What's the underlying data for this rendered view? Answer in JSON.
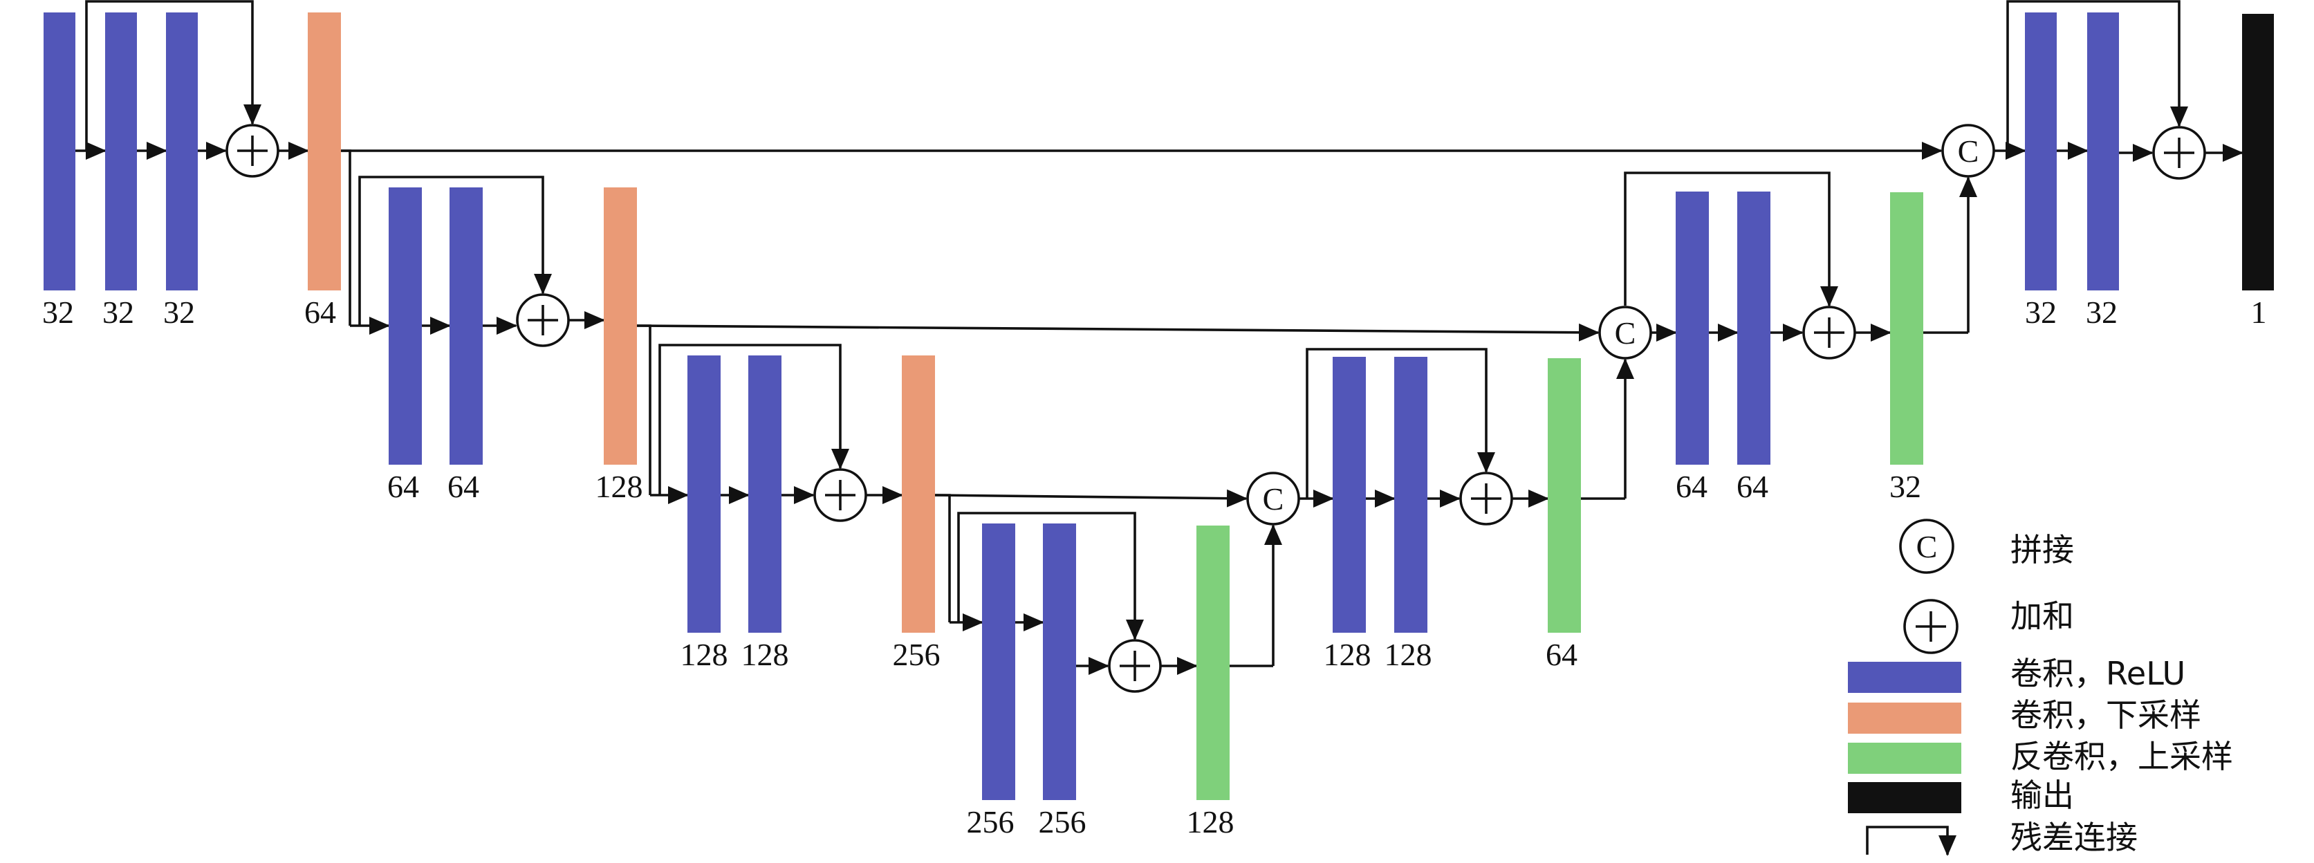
{
  "colors": {
    "conv_relu": "#5256b8",
    "conv_down": "#ea9a76",
    "deconv_up": "#7fd07b",
    "output": "#111111",
    "line": "#111111"
  },
  "blocks": [
    {
      "type": "conv_relu",
      "label": "32"
    },
    {
      "type": "conv_relu",
      "label": "32"
    },
    {
      "type": "conv_relu",
      "label": "32"
    },
    {
      "type": "conv_down",
      "label": "64"
    },
    {
      "type": "conv_relu",
      "label": "64"
    },
    {
      "type": "conv_relu",
      "label": "64"
    },
    {
      "type": "conv_down",
      "label": "128"
    },
    {
      "type": "conv_relu",
      "label": "128"
    },
    {
      "type": "conv_relu",
      "label": "128"
    },
    {
      "type": "conv_down",
      "label": "256"
    },
    {
      "type": "conv_relu",
      "label": "256"
    },
    {
      "type": "conv_relu",
      "label": "256"
    },
    {
      "type": "deconv_up",
      "label": "128"
    },
    {
      "type": "conv_relu",
      "label": "128"
    },
    {
      "type": "conv_relu",
      "label": "128"
    },
    {
      "type": "deconv_up",
      "label": "64"
    },
    {
      "type": "conv_relu",
      "label": "64"
    },
    {
      "type": "conv_relu",
      "label": "64"
    },
    {
      "type": "deconv_up",
      "label": "32"
    },
    {
      "type": "conv_relu",
      "label": "32"
    },
    {
      "type": "conv_relu",
      "label": "32"
    },
    {
      "type": "output",
      "label": "1"
    }
  ],
  "concat_symbol": "C",
  "legend": {
    "concat": "拼接",
    "add": "加和",
    "conv_relu": "卷积，ReLU",
    "conv_down": "卷积，下采样",
    "deconv_up": "反卷积，上采样",
    "output": "输出",
    "residual": "残差连接"
  }
}
